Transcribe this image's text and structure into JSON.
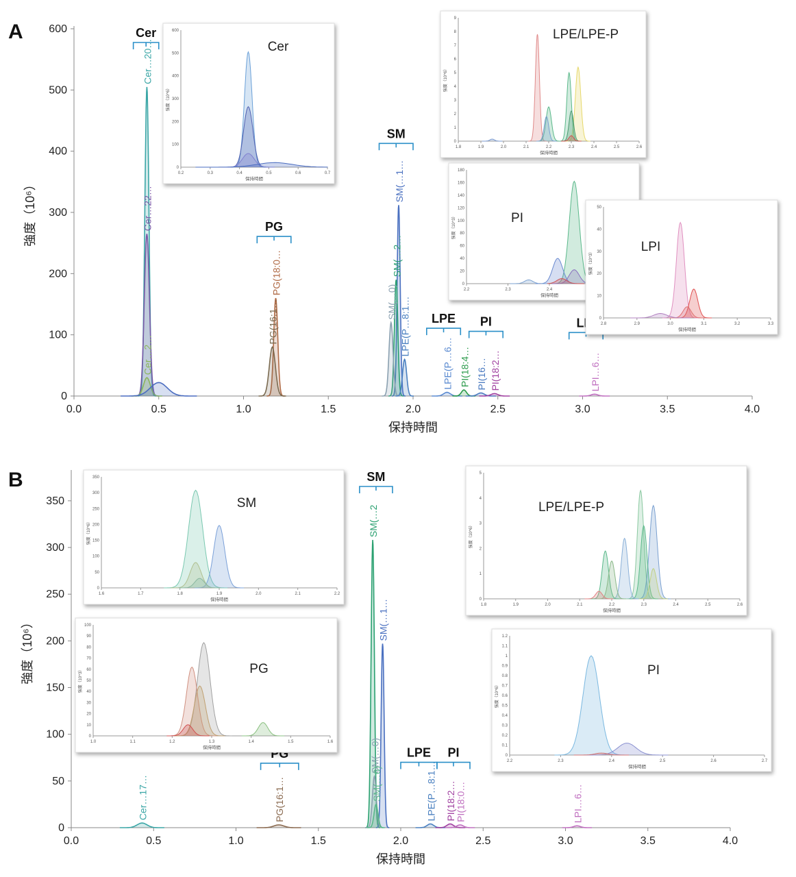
{
  "chart_data": [
    {
      "panel": "A",
      "type": "line",
      "xlabel": "保持時間",
      "ylabel": "強度（10⁶）",
      "xlim": [
        0.0,
        4.0
      ],
      "ylim": [
        0,
        600
      ],
      "xticks": [
        0.0,
        0.5,
        1.0,
        1.5,
        2.0,
        2.5,
        3.0,
        3.5,
        4.0
      ],
      "yticks": [
        0,
        100,
        200,
        300,
        400,
        500,
        600
      ],
      "groups": [
        {
          "label": "Cer",
          "x_range": [
            0.35,
            0.5
          ]
        },
        {
          "label": "PG",
          "x_range": [
            1.08,
            1.28
          ]
        },
        {
          "label": "SM",
          "x_range": [
            1.8,
            2.0
          ]
        },
        {
          "label": "LPE",
          "x_range": [
            2.08,
            2.28
          ]
        },
        {
          "label": "PI",
          "x_range": [
            2.33,
            2.53
          ]
        },
        {
          "label": "LPI",
          "x_range": [
            2.92,
            3.12
          ]
        }
      ],
      "peaks": [
        {
          "label": "Cer…20…",
          "color": "#3aa6a6",
          "apex_x": 0.43,
          "apex_y": 505,
          "width": 0.012
        },
        {
          "label": "Cer…22…",
          "color": "#7a5aa8",
          "apex_x": 0.43,
          "apex_y": 265,
          "width": 0.015
        },
        {
          "label": "Cer…2…",
          "color": "#8ab55a",
          "apex_x": 0.43,
          "apex_y": 30,
          "width": 0.02
        },
        {
          "label": "",
          "color": "#4a6cc0",
          "apex_x": 0.5,
          "apex_y": 22,
          "width": 0.05
        },
        {
          "label": "PG(18:0…",
          "color": "#b06a45",
          "apex_x": 1.19,
          "apex_y": 160,
          "width": 0.012
        },
        {
          "label": "PG(16:1…",
          "color": "#7a6a50",
          "apex_x": 1.17,
          "apex_y": 80,
          "width": 0.018
        },
        {
          "label": "SM(…1…",
          "color": "#4a70c0",
          "apex_x": 1.915,
          "apex_y": 312,
          "width": 0.009
        },
        {
          "label": "SM(…2…",
          "color": "#2aa070",
          "apex_x": 1.9,
          "apex_y": 190,
          "width": 0.01
        },
        {
          "label": "SM(…0)",
          "color": "#8aa0b0",
          "apex_x": 1.87,
          "apex_y": 120,
          "width": 0.012
        },
        {
          "label": "LPE(P…8:1…",
          "color": "#4a80c0",
          "apex_x": 1.95,
          "apex_y": 60,
          "width": 0.012
        },
        {
          "label": "LPE(P…6…",
          "color": "#5a8ad0",
          "apex_x": 2.2,
          "apex_y": 6,
          "width": 0.02
        },
        {
          "label": "PI(18:4…",
          "color": "#2a9a4a",
          "apex_x": 2.3,
          "apex_y": 10,
          "width": 0.015
        },
        {
          "label": "PI(16…",
          "color": "#4a7ac0",
          "apex_x": 2.4,
          "apex_y": 5,
          "width": 0.02
        },
        {
          "label": "PI(18:2…",
          "color": "#a040a0",
          "apex_x": 2.48,
          "apex_y": 4,
          "width": 0.02
        },
        {
          "label": "LPI…6…",
          "color": "#c070c0",
          "apex_x": 3.07,
          "apex_y": 3,
          "width": 0.02
        }
      ],
      "insets": [
        {
          "title": "Cer",
          "xlabel": "保持時間",
          "ylabel": "強度（10^6）",
          "xlim": [
            0.2,
            0.7
          ],
          "ylim": [
            0,
            600
          ],
          "xticks": [
            0.2,
            0.3,
            0.4,
            0.5,
            0.6,
            0.7
          ],
          "yticks": [
            0,
            100,
            200,
            300,
            400,
            500,
            600
          ],
          "peaks": [
            {
              "label": "Cer…20…",
              "color": "#6aa0d8",
              "apex_x": 0.43,
              "apex_y": 505,
              "width": 0.013
            },
            {
              "label": "Cer…22…",
              "color": "#5060b0",
              "apex_x": 0.43,
              "apex_y": 265,
              "width": 0.016
            },
            {
              "label": "",
              "color": "#8080d0",
              "apex_x": 0.43,
              "apex_y": 60,
              "width": 0.02
            },
            {
              "label": "",
              "color": "#4a6cc0",
              "apex_x": 0.52,
              "apex_y": 20,
              "width": 0.06
            }
          ]
        },
        {
          "title": "LPE/LPE-P",
          "xlabel": "保持時間",
          "ylabel": "強度（10^6）",
          "xlim": [
            1.8,
            2.6
          ],
          "ylim": [
            0,
            9
          ],
          "xticks": [
            1.8,
            1.9,
            2.0,
            2.1,
            2.2,
            2.3,
            2.4,
            2.5,
            2.6
          ],
          "yticks": [
            0,
            1,
            2,
            3,
            4,
            5,
            6,
            7,
            8,
            9
          ],
          "peaks": [
            {
              "label": "",
              "color": "#e08a8a",
              "apex_x": 2.15,
              "apex_y": 7.8,
              "width": 0.009
            },
            {
              "label": "",
              "color": "#e6d86a",
              "apex_x": 2.33,
              "apex_y": 5.4,
              "width": 0.012
            },
            {
              "label": "",
              "color": "#5ab88a",
              "apex_x": 2.29,
              "apex_y": 5.0,
              "width": 0.01
            },
            {
              "label": "",
              "color": "#5ab88a",
              "apex_x": 2.2,
              "apex_y": 2.5,
              "width": 0.012
            },
            {
              "label": "",
              "color": "#4a9a70",
              "apex_x": 2.3,
              "apex_y": 2.2,
              "width": 0.01
            },
            {
              "label": "",
              "color": "#7aa0d0",
              "apex_x": 2.19,
              "apex_y": 1.8,
              "width": 0.01
            },
            {
              "label": "",
              "color": "#d05050",
              "apex_x": 2.3,
              "apex_y": 0.4,
              "width": 0.01
            },
            {
              "label": "",
              "color": "#7a9ad0",
              "apex_x": 1.95,
              "apex_y": 0.15,
              "width": 0.01
            }
          ]
        },
        {
          "title": "PI",
          "xlabel": "保持時間",
          "ylabel": "強度（10^3）",
          "xlim": [
            2.2,
            2.6
          ],
          "ylim": [
            0,
            180
          ],
          "xticks": [
            2.2,
            2.3,
            2.4,
            2.5,
            2.6
          ],
          "yticks": [
            0,
            20,
            40,
            60,
            80,
            100,
            120,
            140,
            160,
            180
          ],
          "peaks": [
            {
              "label": "",
              "color": "#5ab88a",
              "apex_x": 2.46,
              "apex_y": 162,
              "width": 0.012
            },
            {
              "label": "",
              "color": "#6a8ad0",
              "apex_x": 2.42,
              "apex_y": 40,
              "width": 0.012
            },
            {
              "label": "",
              "color": "#8a70c0",
              "apex_x": 2.46,
              "apex_y": 22,
              "width": 0.012
            },
            {
              "label": "",
              "color": "#d05050",
              "apex_x": 2.43,
              "apex_y": 8,
              "width": 0.012
            },
            {
              "label": "",
              "color": "#7aa0d0",
              "apex_x": 2.35,
              "apex_y": 6,
              "width": 0.01
            }
          ]
        },
        {
          "title": "LPI",
          "xlabel": "保持時間",
          "ylabel": "強度（10^3）",
          "xlim": [
            2.8,
            3.3
          ],
          "ylim": [
            0,
            50
          ],
          "xticks": [
            2.8,
            2.9,
            3.0,
            3.1,
            3.2,
            3.3
          ],
          "yticks": [
            0,
            10,
            20,
            30,
            40,
            50
          ],
          "peaks": [
            {
              "label": "",
              "color": "#e090c0",
              "apex_x": 3.03,
              "apex_y": 43,
              "width": 0.012
            },
            {
              "label": "",
              "color": "#e05050",
              "apex_x": 3.07,
              "apex_y": 13,
              "width": 0.012
            },
            {
              "label": "",
              "color": "#e07070",
              "apex_x": 3.05,
              "apex_y": 5,
              "width": 0.012
            },
            {
              "label": "",
              "color": "#b080c0",
              "apex_x": 2.97,
              "apex_y": 2,
              "width": 0.02
            }
          ]
        }
      ]
    },
    {
      "panel": "B",
      "type": "line",
      "xlabel": "保持時間",
      "ylabel": "強度（10⁶）",
      "xlim": [
        0.0,
        4.0
      ],
      "ylim": [
        0,
        380
      ],
      "xticks": [
        0.0,
        0.5,
        1.0,
        1.5,
        2.0,
        2.5,
        3.0,
        3.5,
        4.0
      ],
      "yticks": [
        0,
        50,
        100,
        150,
        200,
        250,
        300,
        350
      ],
      "groups": [
        {
          "label": "SM",
          "x_range": [
            1.75,
            1.95
          ]
        },
        {
          "label": "PG",
          "x_range": [
            1.15,
            1.38
          ]
        },
        {
          "label": "LPE",
          "x_range": [
            2.0,
            2.22
          ]
        },
        {
          "label": "PI",
          "x_range": [
            2.22,
            2.42
          ]
        }
      ],
      "peaks": [
        {
          "label": "SM(…2",
          "color": "#2aa070",
          "apex_x": 1.83,
          "apex_y": 308,
          "width": 0.01
        },
        {
          "label": "SM(…1…",
          "color": "#4a70c0",
          "apex_x": 1.89,
          "apex_y": 197,
          "width": 0.009
        },
        {
          "label": "SM(…0)",
          "color": "#8aa0b0",
          "apex_x": 1.84,
          "apex_y": 55,
          "width": 0.012
        },
        {
          "label": "SM(…6)",
          "color": "#5ab88a",
          "apex_x": 1.85,
          "apex_y": 25,
          "width": 0.012
        },
        {
          "label": "Cer…17…",
          "color": "#3aa6a6",
          "apex_x": 0.43,
          "apex_y": 5,
          "width": 0.03
        },
        {
          "label": "PG(16:1…",
          "color": "#8a6a50",
          "apex_x": 1.26,
          "apex_y": 3,
          "width": 0.03
        },
        {
          "label": "LPE(P…8:1…",
          "color": "#4a80c0",
          "apex_x": 2.18,
          "apex_y": 4,
          "width": 0.02
        },
        {
          "label": "PI(18:2…",
          "color": "#a040a0",
          "apex_x": 2.3,
          "apex_y": 4,
          "width": 0.02
        },
        {
          "label": "PI(18:0…",
          "color": "#c070c0",
          "apex_x": 2.36,
          "apex_y": 3,
          "width": 0.02
        },
        {
          "label": "LPI…6…",
          "color": "#c070c0",
          "apex_x": 3.07,
          "apex_y": 2,
          "width": 0.02
        }
      ],
      "insets": [
        {
          "title": "SM",
          "xlabel": "保持時間",
          "ylabel": "強度（10^6）",
          "xlim": [
            1.6,
            2.2
          ],
          "ylim": [
            0,
            350
          ],
          "xticks": [
            1.6,
            1.7,
            1.8,
            1.9,
            2.0,
            2.1,
            2.2
          ],
          "yticks": [
            0,
            50,
            100,
            150,
            200,
            250,
            300,
            350
          ],
          "peaks": [
            {
              "label": "",
              "color": "#7ac8b0",
              "apex_x": 1.84,
              "apex_y": 308,
              "width": 0.018
            },
            {
              "label": "",
              "color": "#7aa0d8",
              "apex_x": 1.9,
              "apex_y": 197,
              "width": 0.014
            },
            {
              "label": "",
              "color": "#b0c090",
              "apex_x": 1.84,
              "apex_y": 80,
              "width": 0.014
            },
            {
              "label": "",
              "color": "#8ab8a0",
              "apex_x": 1.85,
              "apex_y": 30,
              "width": 0.012
            }
          ]
        },
        {
          "title": "PG",
          "xlabel": "保持時間",
          "ylabel": "強度（10^3）",
          "xlim": [
            1.0,
            1.6
          ],
          "ylim": [
            0,
            100
          ],
          "xticks": [
            1.0,
            1.1,
            1.2,
            1.3,
            1.4,
            1.5,
            1.6
          ],
          "yticks": [
            0,
            10,
            20,
            30,
            40,
            50,
            60,
            70,
            80,
            90,
            100
          ],
          "peaks": [
            {
              "label": "",
              "color": "#a0a0a0",
              "apex_x": 1.28,
              "apex_y": 84,
              "width": 0.016
            },
            {
              "label": "",
              "color": "#d09080",
              "apex_x": 1.25,
              "apex_y": 62,
              "width": 0.014
            },
            {
              "label": "",
              "color": "#c0a070",
              "apex_x": 1.27,
              "apex_y": 45,
              "width": 0.014
            },
            {
              "label": "",
              "color": "#d05050",
              "apex_x": 1.24,
              "apex_y": 10,
              "width": 0.012
            },
            {
              "label": "",
              "color": "#8ac080",
              "apex_x": 1.43,
              "apex_y": 12,
              "width": 0.012
            }
          ]
        },
        {
          "title": "LPE/LPE-P",
          "xlabel": "保持時間",
          "ylabel": "強度（10^6）",
          "xlim": [
            1.8,
            2.6
          ],
          "ylim": [
            0,
            5
          ],
          "xticks": [
            1.8,
            1.9,
            2.0,
            2.1,
            2.2,
            2.3,
            2.4,
            2.5,
            2.6
          ],
          "yticks": [
            0,
            1,
            2,
            3,
            4,
            5
          ],
          "peaks": [
            {
              "label": "",
              "color": "#8ac8a0",
              "apex_x": 2.29,
              "apex_y": 4.3,
              "width": 0.01
            },
            {
              "label": "",
              "color": "#7aa0d0",
              "apex_x": 2.33,
              "apex_y": 3.7,
              "width": 0.012
            },
            {
              "label": "",
              "color": "#5ab88a",
              "apex_x": 2.3,
              "apex_y": 2.9,
              "width": 0.01
            },
            {
              "label": "",
              "color": "#8ab0d8",
              "apex_x": 2.24,
              "apex_y": 2.4,
              "width": 0.01
            },
            {
              "label": "",
              "color": "#5ab88a",
              "apex_x": 2.18,
              "apex_y": 1.9,
              "width": 0.01
            },
            {
              "label": "",
              "color": "#8ab888",
              "apex_x": 2.2,
              "apex_y": 1.5,
              "width": 0.01
            },
            {
              "label": "",
              "color": "#c0d080",
              "apex_x": 2.33,
              "apex_y": 1.2,
              "width": 0.01
            },
            {
              "label": "",
              "color": "#e08080",
              "apex_x": 2.16,
              "apex_y": 0.3,
              "width": 0.01
            }
          ]
        },
        {
          "title": "PI",
          "xlabel": "保持時間",
          "ylabel": "強度（10^6）",
          "xlim": [
            2.2,
            2.7
          ],
          "ylim": [
            0,
            1.2
          ],
          "xticks": [
            2.2,
            2.3,
            2.4,
            2.5,
            2.6,
            2.7
          ],
          "yticks": [
            0,
            0.1,
            0.2,
            0.3,
            0.4,
            0.5,
            0.6,
            0.7,
            0.8,
            0.9,
            1,
            1.1,
            1.2
          ],
          "peaks": [
            {
              "label": "",
              "color": "#7ab8e0",
              "apex_x": 2.36,
              "apex_y": 1.0,
              "width": 0.016
            },
            {
              "label": "",
              "color": "#8a90d0",
              "apex_x": 2.43,
              "apex_y": 0.12,
              "width": 0.018
            },
            {
              "label": "",
              "color": "#d07070",
              "apex_x": 2.38,
              "apex_y": 0.02,
              "width": 0.012
            }
          ]
        }
      ]
    }
  ]
}
